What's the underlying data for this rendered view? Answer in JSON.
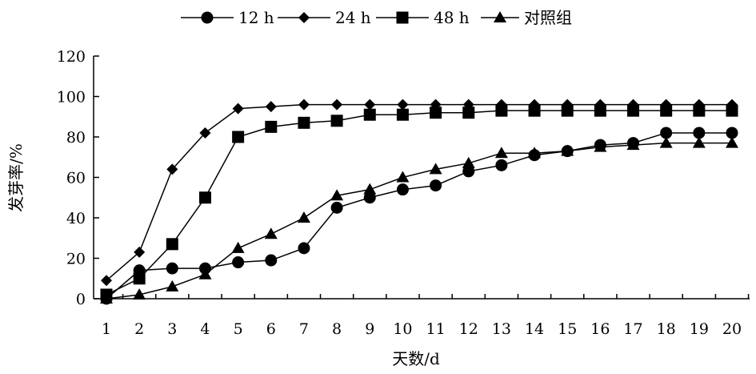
{
  "chart_data": {
    "type": "line",
    "title": "",
    "xlabel": "天数/d",
    "ylabel": "发芽率/%",
    "ylim": [
      0,
      120
    ],
    "yticks": [
      0,
      20,
      40,
      60,
      80,
      100,
      120
    ],
    "x": [
      1,
      2,
      3,
      4,
      5,
      6,
      7,
      8,
      9,
      10,
      11,
      12,
      13,
      14,
      15,
      16,
      17,
      18,
      19,
      20
    ],
    "grid": false,
    "legend": "top-center",
    "series": [
      {
        "name": "12 h",
        "marker": "circle",
        "values": [
          0,
          14,
          15,
          15,
          18,
          19,
          25,
          45,
          50,
          54,
          56,
          63,
          66,
          71,
          73,
          76,
          77,
          82,
          82,
          82
        ]
      },
      {
        "name": "24 h",
        "marker": "diamond",
        "values": [
          9,
          23,
          64,
          82,
          94,
          95,
          96,
          96,
          96,
          96,
          96,
          96,
          96,
          96,
          96,
          96,
          96,
          96,
          96,
          96
        ]
      },
      {
        "name": "48 h",
        "marker": "square",
        "values": [
          2,
          10,
          27,
          50,
          80,
          85,
          87,
          88,
          91,
          91,
          92,
          92,
          93,
          93,
          93,
          93,
          93,
          93,
          93,
          93
        ]
      },
      {
        "name": "对照组",
        "marker": "triangle",
        "values": [
          0,
          2,
          6,
          12,
          25,
          32,
          40,
          51,
          54,
          60,
          64,
          67,
          72,
          72,
          73,
          75,
          76,
          77,
          77,
          77
        ]
      }
    ]
  }
}
